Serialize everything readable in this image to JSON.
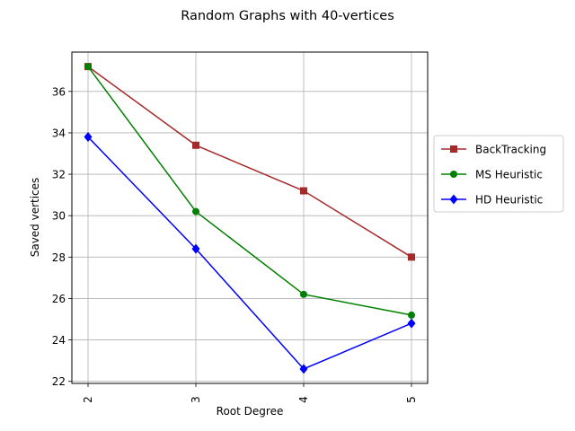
{
  "chart_data": {
    "type": "line",
    "title": "Random Graphs with 40-vertices",
    "xlabel": "Root Degree",
    "ylabel": "Saved vertices",
    "x": [
      2,
      3,
      4,
      5
    ],
    "x_tick_labels": [
      "2",
      "3",
      "4",
      "5"
    ],
    "xlim": [
      1.85,
      5.15
    ],
    "y_ticks": [
      22,
      24,
      26,
      28,
      30,
      32,
      34,
      36
    ],
    "y_tick_labels": [
      "22",
      "24",
      "26",
      "28",
      "30",
      "32",
      "34",
      "36"
    ],
    "ylim": [
      21.9,
      37.9
    ],
    "grid": true,
    "legend_position": "right-outside",
    "series": [
      {
        "name": "BackTracking",
        "values": [
          37.2,
          33.4,
          31.2,
          28.0
        ],
        "color": "#a52a2a",
        "marker": "square"
      },
      {
        "name": "MS Heuristic",
        "values": [
          37.2,
          30.2,
          26.2,
          25.2
        ],
        "color": "#008000",
        "marker": "circle"
      },
      {
        "name": "HD Heuristic",
        "values": [
          33.8,
          28.4,
          22.6,
          24.8
        ],
        "color": "#0000ff",
        "marker": "diamond"
      }
    ]
  }
}
